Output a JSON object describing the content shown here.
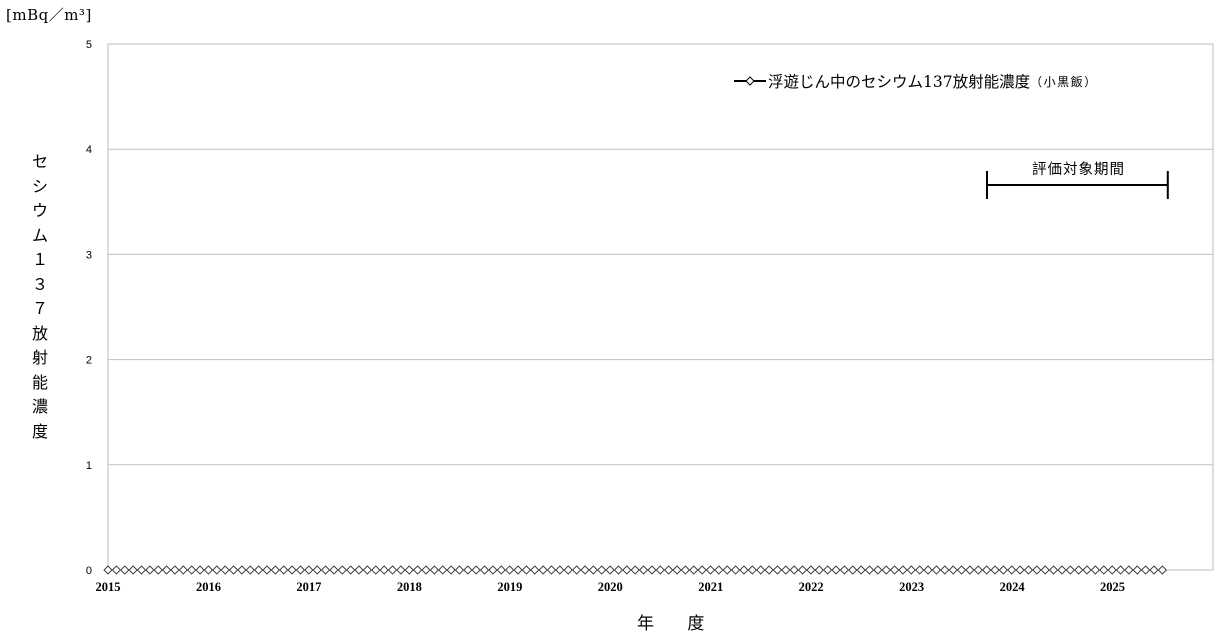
{
  "unit_label": "[mBq／m³]",
  "ylabel_chars": [
    "セ",
    "シ",
    "ウ",
    "ム",
    "１",
    "３",
    "７",
    "放",
    "射",
    "能",
    "濃",
    "度"
  ],
  "xlabel": "年 度",
  "legend": {
    "text": "浮遊じん中のセシウム137放射能濃度",
    "suffix": "（小黒飯）"
  },
  "period_label": "評価対象期間",
  "chart_data": {
    "type": "line",
    "ylim": [
      0,
      5
    ],
    "yticks": [
      0,
      1,
      2,
      3,
      4,
      5
    ],
    "xlim": [
      2015,
      2026
    ],
    "xtick_labels": [
      "2015",
      "2016",
      "2017",
      "2018",
      "2019",
      "2020",
      "2021",
      "2022",
      "2023",
      "2024",
      "2025"
    ],
    "series": [
      {
        "name": "浮遊じん中のセシウム137放射能濃度（小黒飯）",
        "marker": "diamond-open",
        "color": "#333333",
        "x_start": 2015.0,
        "x_end": 2025.5,
        "x_step": 0.0833,
        "values_all": 0
      }
    ],
    "grid": true,
    "evaluation_period": {
      "start": 2023.75,
      "end": 2025.55
    }
  }
}
